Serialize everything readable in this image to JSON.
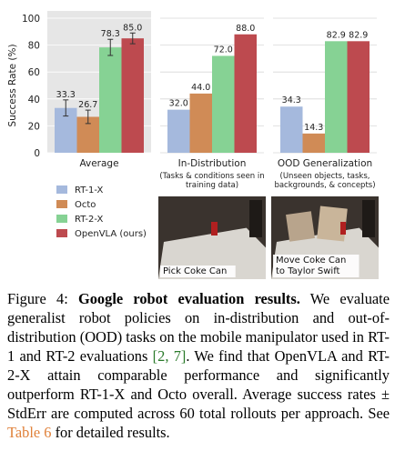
{
  "chart_data": {
    "type": "bar",
    "ylabel": "Success Rate (%)",
    "ylim": [
      0,
      100
    ],
    "yticks": [
      0,
      20,
      40,
      60,
      80,
      100
    ],
    "grid": true,
    "legend_placement": "bottom-left",
    "categories": [
      "Average",
      "In-Distribution",
      "OOD Generalization"
    ],
    "category_notes": [
      "",
      "(Tasks & conditions seen in\ntraining data)",
      "(Unseen objects, tasks,\nbackgrounds, & concepts)"
    ],
    "series": [
      {
        "name": "RT-1-X",
        "color": "#a5b9dd",
        "values": [
          33.3,
          32.0,
          34.3
        ],
        "labels": [
          "33.3",
          "32.0",
          "34.3"
        ],
        "err": [
          6,
          0,
          0
        ]
      },
      {
        "name": "Octo",
        "color": "#d08b56",
        "values": [
          26.7,
          44.0,
          14.3
        ],
        "labels": [
          "26.7",
          "44.0",
          "14.3"
        ],
        "err": [
          5,
          0,
          0
        ]
      },
      {
        "name": "RT-2-X",
        "color": "#86d294",
        "values": [
          78.3,
          72.0,
          82.9
        ],
        "labels": [
          "78.3",
          "72.0",
          "82.9"
        ],
        "err": [
          6,
          0,
          0
        ]
      },
      {
        "name": "OpenVLA (ours)",
        "color": "#bd4a4f",
        "values": [
          85.0,
          88.0,
          82.9
        ],
        "labels": [
          "85.0",
          "88.0",
          "82.9"
        ],
        "err": [
          4,
          0,
          0
        ]
      }
    ]
  },
  "photos": [
    {
      "label": "Pick Coke Can",
      "icon": "coke-can-on-table"
    },
    {
      "label": "Move Coke Can\nto Taylor Swift",
      "icon": "coke-can-with-photos"
    }
  ],
  "caption": {
    "figure": "Figure 4:",
    "title": "Google robot evaluation results.",
    "text_1": "We evaluate generalist robot policies on in-distribution and out-of-distribution (OOD) tasks on the mobile manipulator used in RT-1 and RT-2 evaluations",
    "cite_open": "[",
    "cite_1": "2",
    "cite_sep": ", ",
    "cite_2": "7",
    "cite_close": "]",
    "text_2": ". We find that OpenVLA and RT-2-X attain comparable performance and significantly outperform RT-1-X and Octo overall. Average success rates ± StdErr are computed across 60 total rollouts per approach. See",
    "table_ref": "Table 6",
    "text_3": "for detailed results."
  },
  "colors": {
    "average_panel_bg": "#e6e6e6",
    "grid": "#d8d8d8",
    "link_green": "#2a7a2a",
    "link_orange": "#e0813a"
  }
}
